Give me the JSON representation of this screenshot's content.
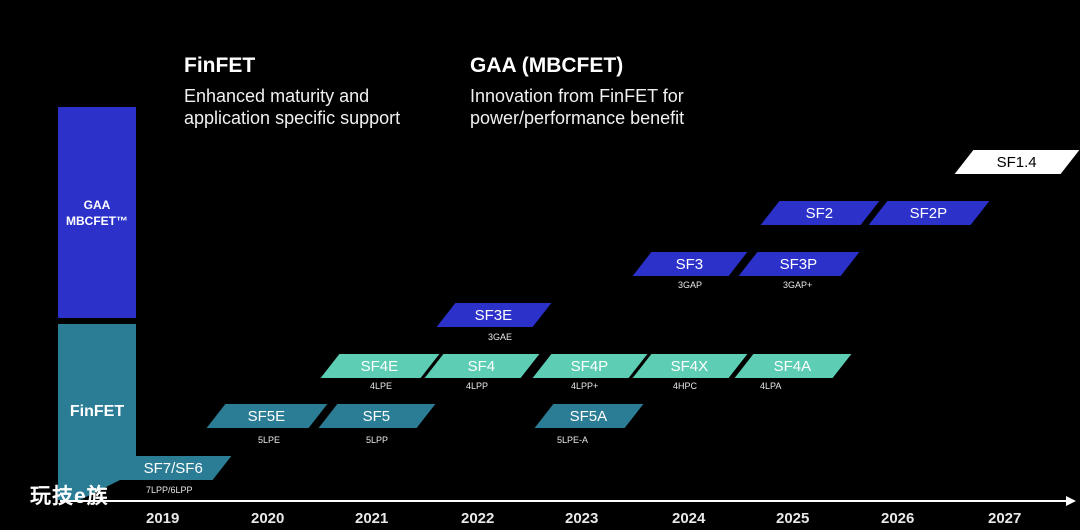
{
  "headings": {
    "finfet": {
      "title": "FinFET",
      "line1": "Enhanced maturity and",
      "line2": "application specific support"
    },
    "gaa": {
      "title": "GAA (MBCFET)",
      "line1": "Innovation from FinFET for",
      "line2": "power/performance benefit"
    }
  },
  "sidebar": {
    "gaa_line1": "GAA",
    "gaa_line2": "MBCFET™",
    "finfet": "FinFET"
  },
  "nodes": [
    {
      "name": "SF7/SF6",
      "sub": "7LPP/6LPP",
      "family": "FinFET"
    },
    {
      "name": "SF5E",
      "sub": "5LPE",
      "family": "FinFET"
    },
    {
      "name": "SF5",
      "sub": "5LPP",
      "family": "FinFET"
    },
    {
      "name": "SF4E",
      "sub": "4LPE",
      "family": "FinFET"
    },
    {
      "name": "SF4",
      "sub": "4LPP",
      "family": "FinFET"
    },
    {
      "name": "SF4P",
      "sub": "4LPP+",
      "family": "FinFET"
    },
    {
      "name": "SF4X",
      "sub": "4HPC",
      "family": "FinFET"
    },
    {
      "name": "SF4A",
      "sub": "4LPA",
      "family": "FinFET"
    },
    {
      "name": "SF5A",
      "sub": "5LPE-A",
      "family": "FinFET"
    },
    {
      "name": "SF3E",
      "sub": "3GAE",
      "family": "GAA"
    },
    {
      "name": "SF3",
      "sub": "3GAP",
      "family": "GAA"
    },
    {
      "name": "SF3P",
      "sub": "3GAP+",
      "family": "GAA"
    },
    {
      "name": "SF2",
      "sub": "",
      "family": "GAA"
    },
    {
      "name": "SF2P",
      "sub": "",
      "family": "GAA"
    },
    {
      "name": "SF1.4",
      "sub": "",
      "family": "GAA"
    }
  ],
  "years": [
    "2019",
    "2020",
    "2021",
    "2022",
    "2023",
    "2024",
    "2025",
    "2026",
    "2027"
  ],
  "watermark": "玩技e族",
  "colors": {
    "background": "#000000",
    "gaa_blue": "#2b31c9",
    "finfet_dark": "#2b7d95",
    "finfet_light": "#5dcdb3",
    "future_white": "#ffffff"
  }
}
